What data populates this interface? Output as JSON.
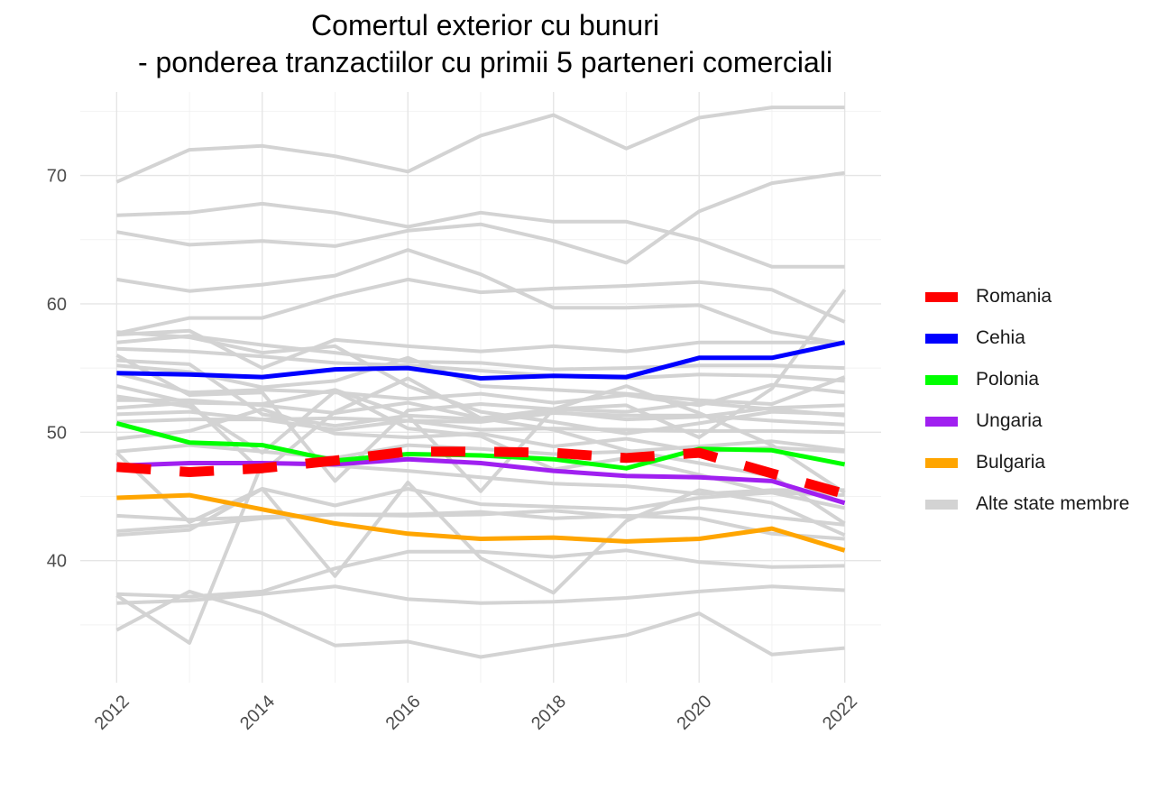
{
  "chart_data": {
    "type": "line",
    "title": "Comertul exterior cu bunuri",
    "subtitle": "- ponderea tranzactiilor cu primii 5 parteneri comerciali",
    "xlabel": "",
    "ylabel": "",
    "x": [
      2012,
      2013,
      2014,
      2015,
      2016,
      2017,
      2018,
      2019,
      2020,
      2021,
      2022
    ],
    "xlim": [
      2011.5,
      2022.5
    ],
    "ylim": [
      30.5,
      76.5
    ],
    "x_ticks": [
      "2012",
      "2014",
      "2016",
      "2018",
      "2020",
      "2022"
    ],
    "y_ticks": [
      "40",
      "50",
      "60",
      "70"
    ],
    "grid": true,
    "legend_position": "right",
    "series": [
      {
        "name": "Romania",
        "color": "#ff0000",
        "dashed": true,
        "values": [
          47.3,
          46.9,
          47.2,
          47.8,
          48.5,
          48.5,
          48.4,
          48.0,
          48.4,
          46.8,
          45.2
        ]
      },
      {
        "name": "Cehia",
        "color": "#0000ff",
        "dashed": false,
        "values": [
          54.6,
          54.5,
          54.3,
          54.9,
          55.0,
          54.2,
          54.4,
          54.3,
          55.8,
          55.8,
          57.0
        ]
      },
      {
        "name": "Polonia",
        "color": "#00ff00",
        "dashed": false,
        "values": [
          50.7,
          49.2,
          49.0,
          47.8,
          48.3,
          48.2,
          47.9,
          47.2,
          48.7,
          48.6,
          47.5
        ]
      },
      {
        "name": "Ungaria",
        "color": "#a020f0",
        "dashed": false,
        "values": [
          47.4,
          47.6,
          47.6,
          47.5,
          47.9,
          47.6,
          47.0,
          46.6,
          46.5,
          46.2,
          44.5
        ]
      },
      {
        "name": "Bulgaria",
        "color": "#ffa500",
        "dashed": false,
        "values": [
          44.9,
          45.1,
          44.0,
          42.9,
          42.1,
          41.7,
          41.8,
          41.5,
          41.7,
          42.5,
          40.8
        ]
      }
    ],
    "other_series_name": "Alte state membre",
    "other_series_color": "#d3d3d3",
    "other_series": [
      [
        69.5,
        72.0,
        72.3,
        71.5,
        70.3,
        73.1,
        74.7,
        72.1,
        74.5,
        75.3,
        75.3
      ],
      [
        66.9,
        67.1,
        67.8,
        67.1,
        66.0,
        67.1,
        66.4,
        66.4,
        65.0,
        62.9,
        62.9
      ],
      [
        65.6,
        64.6,
        64.9,
        64.5,
        65.7,
        66.2,
        64.9,
        63.2,
        67.2,
        69.4,
        70.2
      ],
      [
        61.9,
        61.0,
        61.5,
        62.2,
        64.2,
        62.3,
        59.7,
        59.7,
        59.9,
        57.8,
        56.9
      ],
      [
        57.7,
        58.9,
        58.9,
        60.6,
        61.9,
        60.9,
        61.2,
        61.4,
        61.7,
        61.1,
        58.6
      ],
      [
        57.6,
        57.9,
        55.0,
        57.2,
        56.7,
        56.3,
        56.7,
        56.3,
        57.0,
        57.0,
        57.0
      ],
      [
        57.0,
        57.5,
        56.8,
        56.2,
        55.5,
        55.4,
        54.9,
        55.0,
        55.2,
        55.2,
        55.0
      ],
      [
        56.5,
        56.3,
        55.9,
        55.4,
        55.2,
        54.8,
        54.4,
        54.2,
        54.5,
        54.4,
        54.0
      ],
      [
        55.2,
        54.7,
        53.5,
        54.0,
        55.8,
        53.6,
        53.3,
        53.0,
        52.5,
        52.2,
        54.3
      ],
      [
        54.6,
        53.1,
        53.3,
        53.1,
        52.6,
        53.0,
        52.3,
        52.9,
        52.1,
        53.7,
        53.1
      ],
      [
        53.6,
        52.3,
        52.2,
        53.3,
        51.3,
        51.0,
        51.6,
        51.0,
        51.2,
        51.9,
        52.1
      ],
      [
        52.5,
        52.5,
        52.1,
        51.5,
        52.3,
        51.1,
        51.8,
        51.6,
        52.3,
        51.8,
        51.3
      ],
      [
        51.4,
        51.6,
        51.0,
        51.1,
        50.9,
        50.8,
        51.5,
        51.3,
        51.3,
        50.9,
        50.6
      ],
      [
        50.8,
        51.0,
        51.0,
        50.2,
        50.9,
        50.2,
        50.3,
        50.2,
        50.1,
        50.1,
        50.0
      ],
      [
        49.5,
        50.1,
        51.8,
        49.9,
        49.6,
        49.9,
        48.9,
        49.5,
        48.5,
        48.8,
        48.5
      ],
      [
        48.5,
        49.0,
        48.5,
        48.0,
        49.0,
        48.7,
        48.3,
        48.5,
        48.9,
        49.3,
        48.6
      ],
      [
        57.8,
        57.4,
        56.2,
        56.7,
        53.6,
        51.6,
        50.8,
        49.9,
        50.7,
        51.6,
        51.4
      ],
      [
        56.0,
        52.9,
        53.1,
        46.2,
        51.7,
        52.2,
        51.8,
        52.1,
        49.6,
        53.4,
        61.1
      ],
      [
        55.6,
        55.3,
        51.4,
        50.5,
        51.3,
        45.4,
        51.8,
        53.6,
        51.5,
        49.0,
        45.3
      ],
      [
        52.8,
        52.0,
        48.4,
        53.2,
        50.3,
        49.7,
        47.1,
        48.0,
        46.7,
        45.3,
        44.1
      ],
      [
        51.9,
        52.3,
        46.9,
        51.6,
        54.2,
        51.1,
        50.2,
        48.6,
        47.6,
        46.6,
        42.9
      ],
      [
        48.4,
        43.0,
        45.6,
        44.3,
        45.6,
        44.4,
        44.2,
        44.0,
        44.9,
        45.3,
        45.1
      ],
      [
        43.5,
        43.2,
        43.4,
        43.6,
        43.6,
        43.8,
        43.3,
        43.5,
        43.3,
        42.1,
        41.7
      ],
      [
        42.3,
        42.7,
        43.3,
        43.6,
        43.5,
        43.6,
        43.9,
        43.4,
        44.1,
        43.4,
        42.8
      ],
      [
        42.0,
        42.4,
        45.6,
        38.8,
        46.1,
        40.2,
        37.5,
        43.1,
        45.5,
        44.5,
        42.0
      ],
      [
        37.4,
        37.2,
        37.6,
        39.4,
        40.7,
        40.7,
        40.3,
        40.8,
        39.9,
        39.5,
        39.6
      ],
      [
        37.3,
        33.6,
        47.6,
        47.4,
        47.0,
        46.5,
        46.0,
        45.8,
        45.2,
        45.5,
        45.5
      ],
      [
        36.7,
        36.9,
        37.4,
        38.0,
        37.0,
        36.7,
        36.8,
        37.1,
        37.6,
        38.0,
        37.7
      ],
      [
        34.6,
        37.6,
        35.9,
        33.4,
        33.7,
        32.5,
        33.4,
        34.2,
        35.9,
        32.7,
        33.2
      ]
    ]
  }
}
